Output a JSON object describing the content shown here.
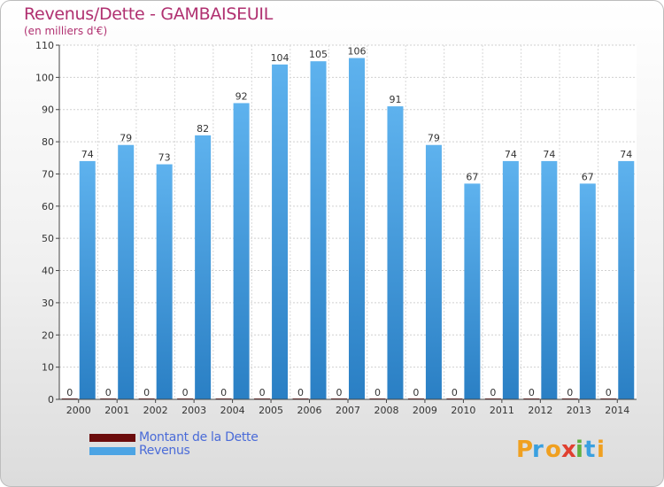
{
  "header": {
    "title": "Revenus/Dette - GAMBAISEUIL",
    "subtitle": "(en milliers d'€)"
  },
  "chart_data": {
    "type": "bar",
    "categories": [
      "2000",
      "2001",
      "2002",
      "2003",
      "2004",
      "2005",
      "2006",
      "2007",
      "2008",
      "2009",
      "2010",
      "2011",
      "2012",
      "2013",
      "2014"
    ],
    "series": [
      {
        "name": "Montant de la Dette",
        "color": "#6b0c0c",
        "values": [
          0,
          0,
          0,
          0,
          0,
          0,
          0,
          0,
          0,
          0,
          0,
          0,
          0,
          0,
          0
        ]
      },
      {
        "name": "Revenus",
        "color": "#3d98db",
        "values": [
          74,
          79,
          73,
          82,
          92,
          104,
          105,
          106,
          91,
          79,
          67,
          74,
          74,
          67,
          74
        ]
      }
    ],
    "title": "Revenus/Dette - GAMBAISEUIL",
    "subtitle": "(en milliers d'€)",
    "ylim": [
      0,
      110
    ],
    "yticks": [
      0,
      10,
      20,
      30,
      40,
      50,
      60,
      70,
      80,
      90,
      100,
      110
    ],
    "grid": true,
    "legend": "bottom-left"
  },
  "legend": {
    "items": [
      {
        "label": "Montant de la Dette",
        "color": "#6b0c0c"
      },
      {
        "label": "Revenus",
        "color": "#4ca4e4"
      }
    ]
  },
  "logo": {
    "text": "Proxiti"
  }
}
